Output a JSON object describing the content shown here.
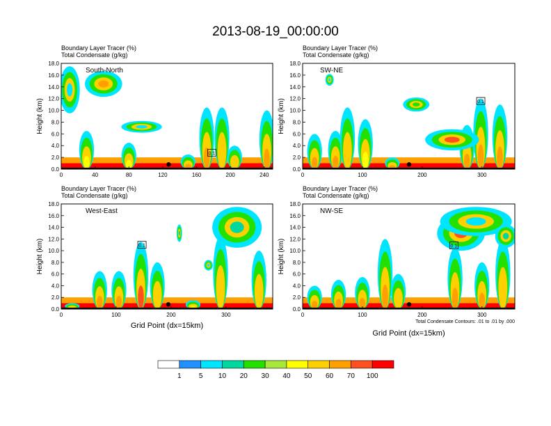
{
  "figure_title": "2013-08-19_00:00:00",
  "panel_title_line1": "Boundary Layer Tracer    (%)",
  "panel_title_line2": "Total Condensate    (g/kg)",
  "ylabel": "Height (km)",
  "xlabel": "Grid Point (dx=15km)",
  "contour_note": "Total Condensate Contours: .01 to .01 by .000",
  "colors": {
    "palette": [
      "#ffffff",
      "#1e90ff",
      "#00e5ff",
      "#00d8a0",
      "#22e000",
      "#a8e838",
      "#ffff00",
      "#ffd000",
      "#ffa000",
      "#ff5020",
      "#ff0000"
    ],
    "background": "#ffffff",
    "text": "#000000"
  },
  "chart_data": [
    {
      "type": "heatmap",
      "label": "South-North",
      "xlim": [
        0,
        250
      ],
      "ylim": [
        0.0,
        18.0
      ],
      "xticks": [
        "0",
        "40",
        "80",
        "120",
        "160",
        "200",
        "240"
      ],
      "yticks": [
        "0.0",
        "2.0",
        "4.0",
        "6.0",
        "8.0",
        "10.0",
        "12.0",
        "14.0",
        "16.0",
        "18.0"
      ],
      "marker_x": 127,
      "box_label": "0.1",
      "box_x": 178,
      "box_y": 2.8,
      "features": [
        {
          "x": 30,
          "h": 6.5,
          "level": 6
        },
        {
          "x": 80,
          "h": 4.5,
          "level": 6
        },
        {
          "x": 150,
          "h": 2.5,
          "level": 8
        },
        {
          "x": 172,
          "h": 10.5,
          "level": 8
        },
        {
          "x": 190,
          "h": 10.5,
          "level": 7
        },
        {
          "x": 205,
          "h": 4.0,
          "level": 7
        },
        {
          "x": 243,
          "h": 10.0,
          "level": 8
        }
      ],
      "blobs": [
        {
          "x": 50,
          "y": 14.5,
          "rx": 22,
          "ry": 2.2,
          "level": 8
        },
        {
          "x": 10,
          "y": 13.5,
          "rx": 12,
          "ry": 4.0,
          "level": 2
        },
        {
          "x": 95,
          "y": 7.2,
          "rx": 24,
          "ry": 1.0,
          "level": 2
        }
      ],
      "colorbar_levels": []
    },
    {
      "type": "heatmap",
      "label": "SW-NE",
      "xlim": [
        0,
        355
      ],
      "ylim": [
        0.0,
        18.0
      ],
      "xticks": [
        "0",
        "100",
        "200",
        "300"
      ],
      "yticks": [
        "0.0",
        "2.0",
        "4.0",
        "6.0",
        "8.0",
        "10.0",
        "12.0",
        "14.0",
        "16.0",
        "18.0"
      ],
      "marker_x": 178,
      "box_label": "0.1",
      "box_x": 298,
      "box_y": 11.6,
      "features": [
        {
          "x": 20,
          "h": 6.0,
          "level": 8
        },
        {
          "x": 55,
          "h": 6.5,
          "level": 8
        },
        {
          "x": 75,
          "h": 10.5,
          "level": 7
        },
        {
          "x": 105,
          "h": 8.5,
          "level": 6
        },
        {
          "x": 150,
          "h": 2.0,
          "level": 8
        },
        {
          "x": 275,
          "h": 7.5,
          "level": 8
        },
        {
          "x": 298,
          "h": 12.0,
          "level": 8
        },
        {
          "x": 330,
          "h": 11.0,
          "level": 8
        }
      ],
      "blobs": [
        {
          "x": 250,
          "y": 5.0,
          "rx": 45,
          "ry": 1.8,
          "level": 9
        },
        {
          "x": 45,
          "y": 15.2,
          "rx": 7,
          "ry": 1.0,
          "level": 2
        },
        {
          "x": 190,
          "y": 11.0,
          "rx": 22,
          "ry": 1.2,
          "level": 4
        }
      ],
      "colorbar_levels": []
    },
    {
      "type": "heatmap",
      "label": "West-East",
      "xlim": [
        0,
        385
      ],
      "ylim": [
        0.0,
        18.0
      ],
      "xticks": [
        "0",
        "100",
        "200",
        "300"
      ],
      "yticks": [
        "0.0",
        "2.0",
        "4.0",
        "6.0",
        "8.0",
        "10.0",
        "12.0",
        "14.0",
        "16.0",
        "18.0"
      ],
      "marker_x": 195,
      "box_label": "0.1",
      "box_x": 147,
      "box_y": 11.0,
      "features": [
        {
          "x": 20,
          "h": 1.0,
          "level": 6
        },
        {
          "x": 70,
          "h": 6.5,
          "level": 8
        },
        {
          "x": 105,
          "h": 6.5,
          "level": 8
        },
        {
          "x": 145,
          "h": 11.5,
          "level": 9
        },
        {
          "x": 175,
          "h": 8.0,
          "level": 7
        },
        {
          "x": 240,
          "h": 1.5,
          "level": 6
        },
        {
          "x": 290,
          "h": 12.5,
          "level": 7
        },
        {
          "x": 360,
          "h": 10.0,
          "level": 7
        }
      ],
      "blobs": [
        {
          "x": 320,
          "y": 14.0,
          "rx": 45,
          "ry": 3.5,
          "level": 3
        },
        {
          "x": 268,
          "y": 7.5,
          "rx": 8,
          "ry": 0.9,
          "level": 2
        },
        {
          "x": 215,
          "y": 13.0,
          "rx": 5,
          "ry": 1.5,
          "level": 3
        }
      ],
      "colorbar_levels": []
    },
    {
      "type": "heatmap",
      "label": "NW-SE",
      "xlim": [
        0,
        355
      ],
      "ylim": [
        0.0,
        18.0
      ],
      "xticks": [
        "0",
        "100",
        "200",
        "300"
      ],
      "yticks": [
        "0.0",
        "2.0",
        "4.0",
        "6.0",
        "8.0",
        "10.0",
        "12.0",
        "14.0",
        "16.0",
        "18.0"
      ],
      "marker_x": 178,
      "box_label": "0.1",
      "box_x": 253,
      "box_y": 10.9,
      "features": [
        {
          "x": 20,
          "h": 4.0,
          "level": 8
        },
        {
          "x": 60,
          "h": 5.0,
          "level": 8
        },
        {
          "x": 100,
          "h": 5.5,
          "level": 8
        },
        {
          "x": 138,
          "h": 12.0,
          "level": 8
        },
        {
          "x": 160,
          "h": 6.0,
          "level": 7
        },
        {
          "x": 255,
          "h": 10.5,
          "level": 8
        },
        {
          "x": 300,
          "h": 8.0,
          "level": 8
        },
        {
          "x": 335,
          "h": 12.0,
          "level": 7
        }
      ],
      "blobs": [
        {
          "x": 265,
          "y": 13.0,
          "rx": 40,
          "ry": 3.0,
          "level": 9
        },
        {
          "x": 290,
          "y": 15.0,
          "rx": 60,
          "ry": 2.5,
          "level": 2
        },
        {
          "x": 340,
          "y": 12.5,
          "rx": 18,
          "ry": 2.0,
          "level": 3
        }
      ],
      "colorbar_levels": []
    }
  ],
  "colorbar": {
    "labels": [
      "1",
      "5",
      "10",
      "20",
      "30",
      "40",
      "50",
      "60",
      "70",
      "100"
    ]
  }
}
